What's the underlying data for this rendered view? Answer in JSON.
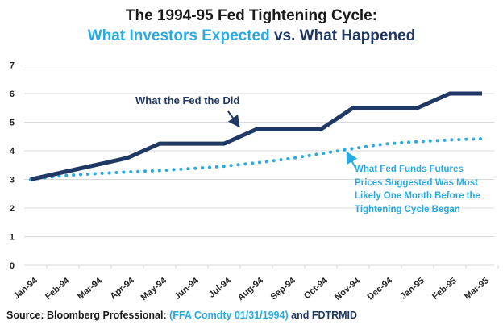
{
  "title": {
    "line1": "The 1994-95 Fed Tightening Cycle:",
    "line2_highlight": "What Investors Expected",
    "line2_rest": " vs. What Happened"
  },
  "chart_data": {
    "type": "line",
    "categories": [
      "Jan-94",
      "Feb-94",
      "Mar-94",
      "Apr-94",
      "May-94",
      "Jun-94",
      "Jul-94",
      "Aug-94",
      "Sep-94",
      "Oct-94",
      "Nov-94",
      "Dec-94",
      "Jan-95",
      "Feb-95",
      "Mar-95"
    ],
    "series": [
      {
        "name": "What the Fed the Did",
        "style": "solid",
        "color": "#1F3864",
        "values": [
          3.0,
          3.25,
          3.5,
          3.75,
          4.25,
          4.25,
          4.25,
          4.75,
          4.75,
          4.75,
          5.5,
          5.5,
          5.5,
          6.0,
          6.0
        ]
      },
      {
        "name": "What Fed Funds Futures Prices Suggested Was Most Likely One Month Before the Tightening Cycle Began",
        "style": "dotted",
        "color": "#29ABE2",
        "values": [
          3.0,
          3.13,
          3.2,
          3.26,
          3.31,
          3.38,
          3.46,
          3.58,
          3.72,
          3.9,
          4.08,
          4.24,
          4.32,
          4.38,
          4.42
        ]
      }
    ],
    "ylim": [
      0,
      7
    ],
    "yticks": [
      0,
      1,
      2,
      3,
      4,
      5,
      6,
      7
    ],
    "grid": "horizontal gridlines",
    "legend": "none (direct labels with arrows)"
  },
  "annotations": {
    "fed_label": "What the Fed the Did",
    "futures_label": "What Fed Funds Futures\nPrices Suggested Was Most\nLikely One Month Before the\nTightening Cycle Began"
  },
  "source": {
    "prefix": "Source: Bloomberg Professional: ",
    "highlight": "(FFA Comdty 01/31/1994)",
    "middle": " and ",
    "suffix": "FDTRMID"
  },
  "colors": {
    "navy": "#1F3864",
    "cyan": "#29ABE2",
    "title_text": "#1A1A1A",
    "axis_text": "#262626",
    "gridline": "#D9D9D9"
  }
}
